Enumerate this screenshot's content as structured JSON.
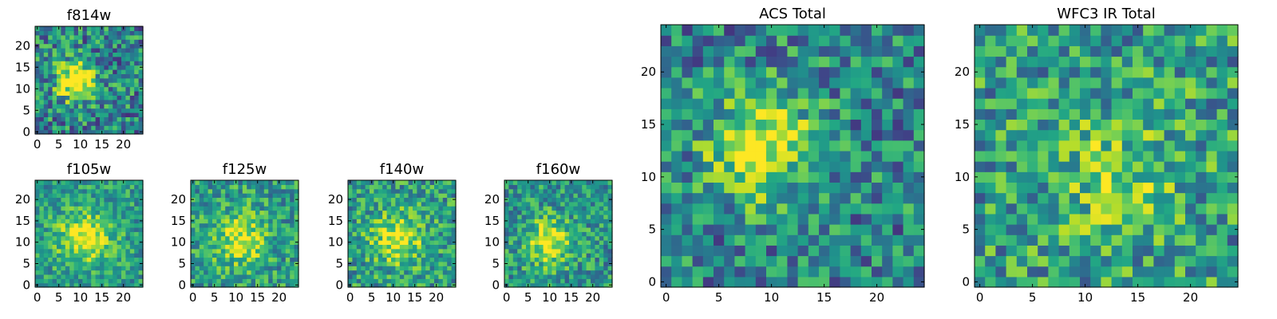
{
  "figure": {
    "description_free": true
  },
  "chart_data": [
    {
      "type": "heatmap",
      "panel": "f814w",
      "title": "f814w",
      "grid": [
        25,
        25
      ],
      "xlim": [
        0,
        24
      ],
      "ylim": [
        0,
        24
      ],
      "xticks": [
        0,
        5,
        10,
        15,
        20
      ],
      "yticks": [
        0,
        5,
        10,
        15,
        20
      ],
      "colormap": "viridis",
      "peak": {
        "x": 9,
        "y": 12,
        "radius": 4.5,
        "strength": 0.7
      },
      "background": 0.45,
      "noise": 0.32,
      "seed": 11
    },
    {
      "type": "heatmap",
      "panel": "f105w",
      "title": "f105w",
      "grid": [
        25,
        25
      ],
      "xlim": [
        0,
        24
      ],
      "ylim": [
        0,
        24
      ],
      "xticks": [
        0,
        5,
        10,
        15,
        20
      ],
      "yticks": [
        0,
        5,
        10,
        15,
        20
      ],
      "colormap": "viridis",
      "peak": {
        "x": 11,
        "y": 11,
        "radius": 6,
        "strength": 0.45
      },
      "background": 0.55,
      "noise": 0.22,
      "seed": 21
    },
    {
      "type": "heatmap",
      "panel": "f125w",
      "title": "f125w",
      "grid": [
        25,
        25
      ],
      "xlim": [
        0,
        24
      ],
      "ylim": [
        0,
        24
      ],
      "xticks": [
        0,
        5,
        10,
        15,
        20
      ],
      "yticks": [
        0,
        5,
        10,
        15,
        20
      ],
      "colormap": "viridis",
      "peak": {
        "x": 11,
        "y": 11,
        "radius": 6,
        "strength": 0.4
      },
      "background": 0.55,
      "noise": 0.25,
      "seed": 31
    },
    {
      "type": "heatmap",
      "panel": "f140w",
      "title": "f140w",
      "grid": [
        25,
        25
      ],
      "xlim": [
        0,
        24
      ],
      "ylim": [
        0,
        24
      ],
      "xticks": [
        0,
        5,
        10,
        15,
        20
      ],
      "yticks": [
        0,
        5,
        10,
        15,
        20
      ],
      "colormap": "viridis",
      "peak": {
        "x": 11,
        "y": 11,
        "radius": 6,
        "strength": 0.4
      },
      "background": 0.55,
      "noise": 0.26,
      "seed": 41
    },
    {
      "type": "heatmap",
      "panel": "f160w",
      "title": "f160w",
      "grid": [
        25,
        25
      ],
      "xlim": [
        0,
        24
      ],
      "ylim": [
        0,
        24
      ],
      "xticks": [
        0,
        5,
        10,
        15,
        20
      ],
      "yticks": [
        0,
        5,
        10,
        15,
        20
      ],
      "colormap": "viridis",
      "peak": {
        "x": 10,
        "y": 10,
        "radius": 5.5,
        "strength": 0.45
      },
      "background": 0.52,
      "noise": 0.25,
      "seed": 51
    },
    {
      "type": "heatmap",
      "panel": "acs-total",
      "title": "ACS Total",
      "grid": [
        25,
        25
      ],
      "xlim": [
        0,
        24
      ],
      "ylim": [
        0,
        24
      ],
      "xticks": [
        0,
        5,
        10,
        15,
        20
      ],
      "yticks": [
        0,
        5,
        10,
        15,
        20
      ],
      "colormap": "viridis",
      "peak": {
        "x": 9,
        "y": 13,
        "radius": 5,
        "strength": 0.55
      },
      "background": 0.45,
      "noise": 0.3,
      "seed": 61
    },
    {
      "type": "heatmap",
      "panel": "wfc3-ir-total",
      "title": "WFC3 IR Total",
      "grid": [
        25,
        25
      ],
      "xlim": [
        0,
        24
      ],
      "ylim": [
        0,
        24
      ],
      "xticks": [
        0,
        5,
        10,
        15,
        20
      ],
      "yticks": [
        0,
        5,
        10,
        15,
        20
      ],
      "colormap": "viridis",
      "peak": {
        "x": 13,
        "y": 10,
        "radius": 6,
        "strength": 0.25
      },
      "background": 0.55,
      "noise": 0.3,
      "seed": 71
    }
  ]
}
